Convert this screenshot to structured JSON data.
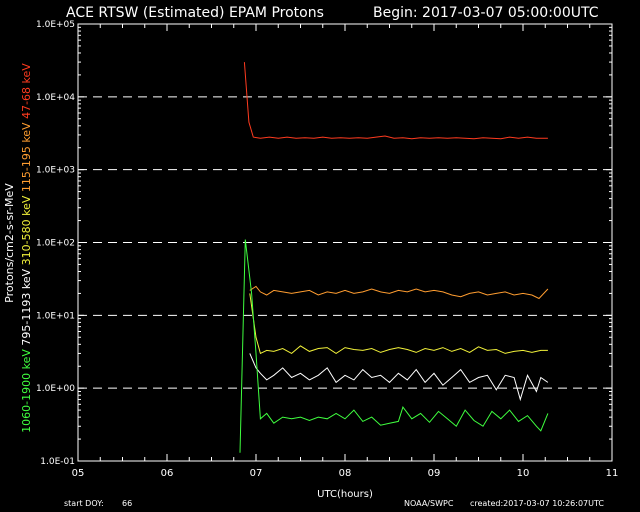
{
  "header": {
    "title": "ACE RTSW (Estimated) EPAM Protons",
    "begin": "Begin: 2017-03-07 05:00:00UTC"
  },
  "footer": {
    "start_doy_label": "start DOY:",
    "start_doy": "66",
    "source": "NOAA/SWPC",
    "created": "created:2017-03-07 10:26:07UTC"
  },
  "colors": {
    "background": "#000000",
    "axes": "#ffffff",
    "grid": "#ffffff",
    "ch47_68": "#ff3b1f",
    "ch115_195": "#ff9d30",
    "ch310_580": "#f2f23a",
    "ch795_1193": "#ffffff",
    "ch1060_1900": "#3fff3f"
  },
  "chart_data": {
    "type": "line",
    "title": "ACE RTSW (Estimated) EPAM Protons",
    "subtitle": "Begin: 2017-03-07 05:00:00UTC",
    "xlabel": "UTC(hours)",
    "ylabel_parts": [
      {
        "text": "1060-1900 keV",
        "color": "#3fff3f"
      },
      {
        "text": "795-1193 keV",
        "color": "#ffffff"
      },
      {
        "text": "310-580 keV",
        "color": "#f2f23a"
      },
      {
        "text": "115-195 keV",
        "color": "#ff9d30"
      },
      {
        "text": "47-68 keV",
        "color": "#ff3b1f"
      }
    ],
    "ylabel_units": "Protons/cm2-s-sr-MeV",
    "x_ticks": [
      "05",
      "06",
      "07",
      "08",
      "09",
      "10",
      "11"
    ],
    "xlim": [
      5,
      11
    ],
    "y_scale": "log",
    "ylim": [
      0.1,
      100000
    ],
    "y_ticks": [
      "1.0E-01",
      "1.0E+00",
      "1.0E+01",
      "1.0E+02",
      "1.0E+03",
      "1.0E+04",
      "1.0E+05"
    ],
    "grid": "dashed horizontal at decades 1e0 to 1e4",
    "series": [
      {
        "name": "47-68 keV",
        "color": "#ff3b1f",
        "points": [
          [
            6.87,
            30000
          ],
          [
            6.92,
            4500
          ],
          [
            6.97,
            2800
          ],
          [
            7.05,
            2700
          ],
          [
            7.15,
            2800
          ],
          [
            7.25,
            2700
          ],
          [
            7.35,
            2800
          ],
          [
            7.45,
            2700
          ],
          [
            7.55,
            2750
          ],
          [
            7.65,
            2700
          ],
          [
            7.75,
            2800
          ],
          [
            7.85,
            2700
          ],
          [
            7.95,
            2750
          ],
          [
            8.05,
            2700
          ],
          [
            8.15,
            2750
          ],
          [
            8.25,
            2700
          ],
          [
            8.35,
            2800
          ],
          [
            8.45,
            2900
          ],
          [
            8.55,
            2700
          ],
          [
            8.65,
            2750
          ],
          [
            8.75,
            2650
          ],
          [
            8.85,
            2750
          ],
          [
            8.95,
            2700
          ],
          [
            9.05,
            2750
          ],
          [
            9.15,
            2700
          ],
          [
            9.25,
            2750
          ],
          [
            9.35,
            2700
          ],
          [
            9.45,
            2650
          ],
          [
            9.55,
            2750
          ],
          [
            9.65,
            2700
          ],
          [
            9.75,
            2650
          ],
          [
            9.85,
            2800
          ],
          [
            9.95,
            2700
          ],
          [
            10.05,
            2800
          ],
          [
            10.15,
            2700
          ],
          [
            10.28,
            2700
          ]
        ]
      },
      {
        "name": "115-195 keV",
        "color": "#ff9d30",
        "points": [
          [
            6.93,
            22
          ],
          [
            7.0,
            25
          ],
          [
            7.05,
            21
          ],
          [
            7.12,
            19
          ],
          [
            7.2,
            22
          ],
          [
            7.3,
            21
          ],
          [
            7.4,
            20
          ],
          [
            7.5,
            21
          ],
          [
            7.6,
            22
          ],
          [
            7.7,
            19
          ],
          [
            7.8,
            21
          ],
          [
            7.9,
            20
          ],
          [
            8.0,
            22
          ],
          [
            8.1,
            20
          ],
          [
            8.2,
            21
          ],
          [
            8.3,
            23
          ],
          [
            8.4,
            21
          ],
          [
            8.5,
            20
          ],
          [
            8.6,
            22
          ],
          [
            8.7,
            21
          ],
          [
            8.8,
            23
          ],
          [
            8.9,
            21
          ],
          [
            9.0,
            22
          ],
          [
            9.1,
            21
          ],
          [
            9.2,
            19
          ],
          [
            9.3,
            18
          ],
          [
            9.4,
            20
          ],
          [
            9.5,
            21
          ],
          [
            9.6,
            19
          ],
          [
            9.7,
            20
          ],
          [
            9.8,
            21
          ],
          [
            9.9,
            19
          ],
          [
            10.0,
            20
          ],
          [
            10.1,
            19
          ],
          [
            10.18,
            17
          ],
          [
            10.28,
            23
          ]
        ]
      },
      {
        "name": "310-580 keV",
        "color": "#f2f23a",
        "points": [
          [
            6.93,
            20
          ],
          [
            7.0,
            5
          ],
          [
            7.05,
            3.0
          ],
          [
            7.12,
            3.3
          ],
          [
            7.2,
            3.2
          ],
          [
            7.3,
            3.5
          ],
          [
            7.4,
            3.0
          ],
          [
            7.5,
            3.8
          ],
          [
            7.6,
            3.2
          ],
          [
            7.7,
            3.5
          ],
          [
            7.8,
            3.6
          ],
          [
            7.9,
            3.0
          ],
          [
            8.0,
            3.6
          ],
          [
            8.1,
            3.4
          ],
          [
            8.2,
            3.3
          ],
          [
            8.3,
            3.5
          ],
          [
            8.4,
            3.1
          ],
          [
            8.5,
            3.4
          ],
          [
            8.6,
            3.6
          ],
          [
            8.7,
            3.4
          ],
          [
            8.8,
            3.1
          ],
          [
            8.9,
            3.5
          ],
          [
            9.0,
            3.3
          ],
          [
            9.1,
            3.6
          ],
          [
            9.2,
            3.2
          ],
          [
            9.3,
            3.5
          ],
          [
            9.4,
            3.1
          ],
          [
            9.5,
            3.7
          ],
          [
            9.6,
            3.3
          ],
          [
            9.7,
            3.4
          ],
          [
            9.8,
            3.0
          ],
          [
            9.9,
            3.2
          ],
          [
            10.0,
            3.3
          ],
          [
            10.1,
            3.1
          ],
          [
            10.2,
            3.3
          ],
          [
            10.28,
            3.3
          ]
        ]
      },
      {
        "name": "795-1193 keV",
        "color": "#ffffff",
        "points": [
          [
            6.93,
            3.0
          ],
          [
            7.0,
            1.9
          ],
          [
            7.05,
            1.6
          ],
          [
            7.12,
            1.3
          ],
          [
            7.2,
            1.5
          ],
          [
            7.3,
            1.9
          ],
          [
            7.4,
            1.4
          ],
          [
            7.5,
            1.6
          ],
          [
            7.6,
            1.3
          ],
          [
            7.7,
            1.5
          ],
          [
            7.8,
            1.9
          ],
          [
            7.9,
            1.2
          ],
          [
            8.0,
            1.5
          ],
          [
            8.1,
            1.3
          ],
          [
            8.2,
            1.8
          ],
          [
            8.3,
            1.4
          ],
          [
            8.4,
            1.5
          ],
          [
            8.5,
            1.2
          ],
          [
            8.6,
            1.6
          ],
          [
            8.7,
            1.3
          ],
          [
            8.8,
            1.8
          ],
          [
            8.9,
            1.2
          ],
          [
            9.0,
            1.6
          ],
          [
            9.1,
            1.1
          ],
          [
            9.2,
            1.4
          ],
          [
            9.3,
            1.8
          ],
          [
            9.4,
            1.2
          ],
          [
            9.5,
            1.4
          ],
          [
            9.6,
            1.5
          ],
          [
            9.7,
            0.95
          ],
          [
            9.8,
            1.5
          ],
          [
            9.9,
            1.4
          ],
          [
            9.97,
            0.7
          ],
          [
            10.05,
            1.5
          ],
          [
            10.15,
            0.9
          ],
          [
            10.2,
            1.4
          ],
          [
            10.28,
            1.2
          ]
        ]
      },
      {
        "name": "1060-1900 keV",
        "color": "#3fff3f",
        "points": [
          [
            6.82,
            0.13
          ],
          [
            6.88,
            110
          ],
          [
            6.95,
            20
          ],
          [
            7.0,
            3.0
          ],
          [
            7.05,
            0.38
          ],
          [
            7.12,
            0.45
          ],
          [
            7.2,
            0.33
          ],
          [
            7.3,
            0.4
          ],
          [
            7.4,
            0.38
          ],
          [
            7.5,
            0.4
          ],
          [
            7.6,
            0.36
          ],
          [
            7.7,
            0.4
          ],
          [
            7.8,
            0.38
          ],
          [
            7.9,
            0.45
          ],
          [
            8.0,
            0.38
          ],
          [
            8.1,
            0.5
          ],
          [
            8.2,
            0.35
          ],
          [
            8.3,
            0.4
          ],
          [
            8.4,
            0.31
          ],
          [
            8.5,
            0.33
          ],
          [
            8.6,
            0.35
          ],
          [
            8.65,
            0.55
          ],
          [
            8.75,
            0.38
          ],
          [
            8.85,
            0.45
          ],
          [
            8.95,
            0.34
          ],
          [
            9.05,
            0.48
          ],
          [
            9.15,
            0.38
          ],
          [
            9.25,
            0.3
          ],
          [
            9.35,
            0.5
          ],
          [
            9.45,
            0.36
          ],
          [
            9.55,
            0.3
          ],
          [
            9.65,
            0.48
          ],
          [
            9.75,
            0.38
          ],
          [
            9.85,
            0.5
          ],
          [
            9.95,
            0.35
          ],
          [
            10.05,
            0.42
          ],
          [
            10.15,
            0.3
          ],
          [
            10.2,
            0.26
          ],
          [
            10.28,
            0.45
          ]
        ]
      }
    ]
  }
}
